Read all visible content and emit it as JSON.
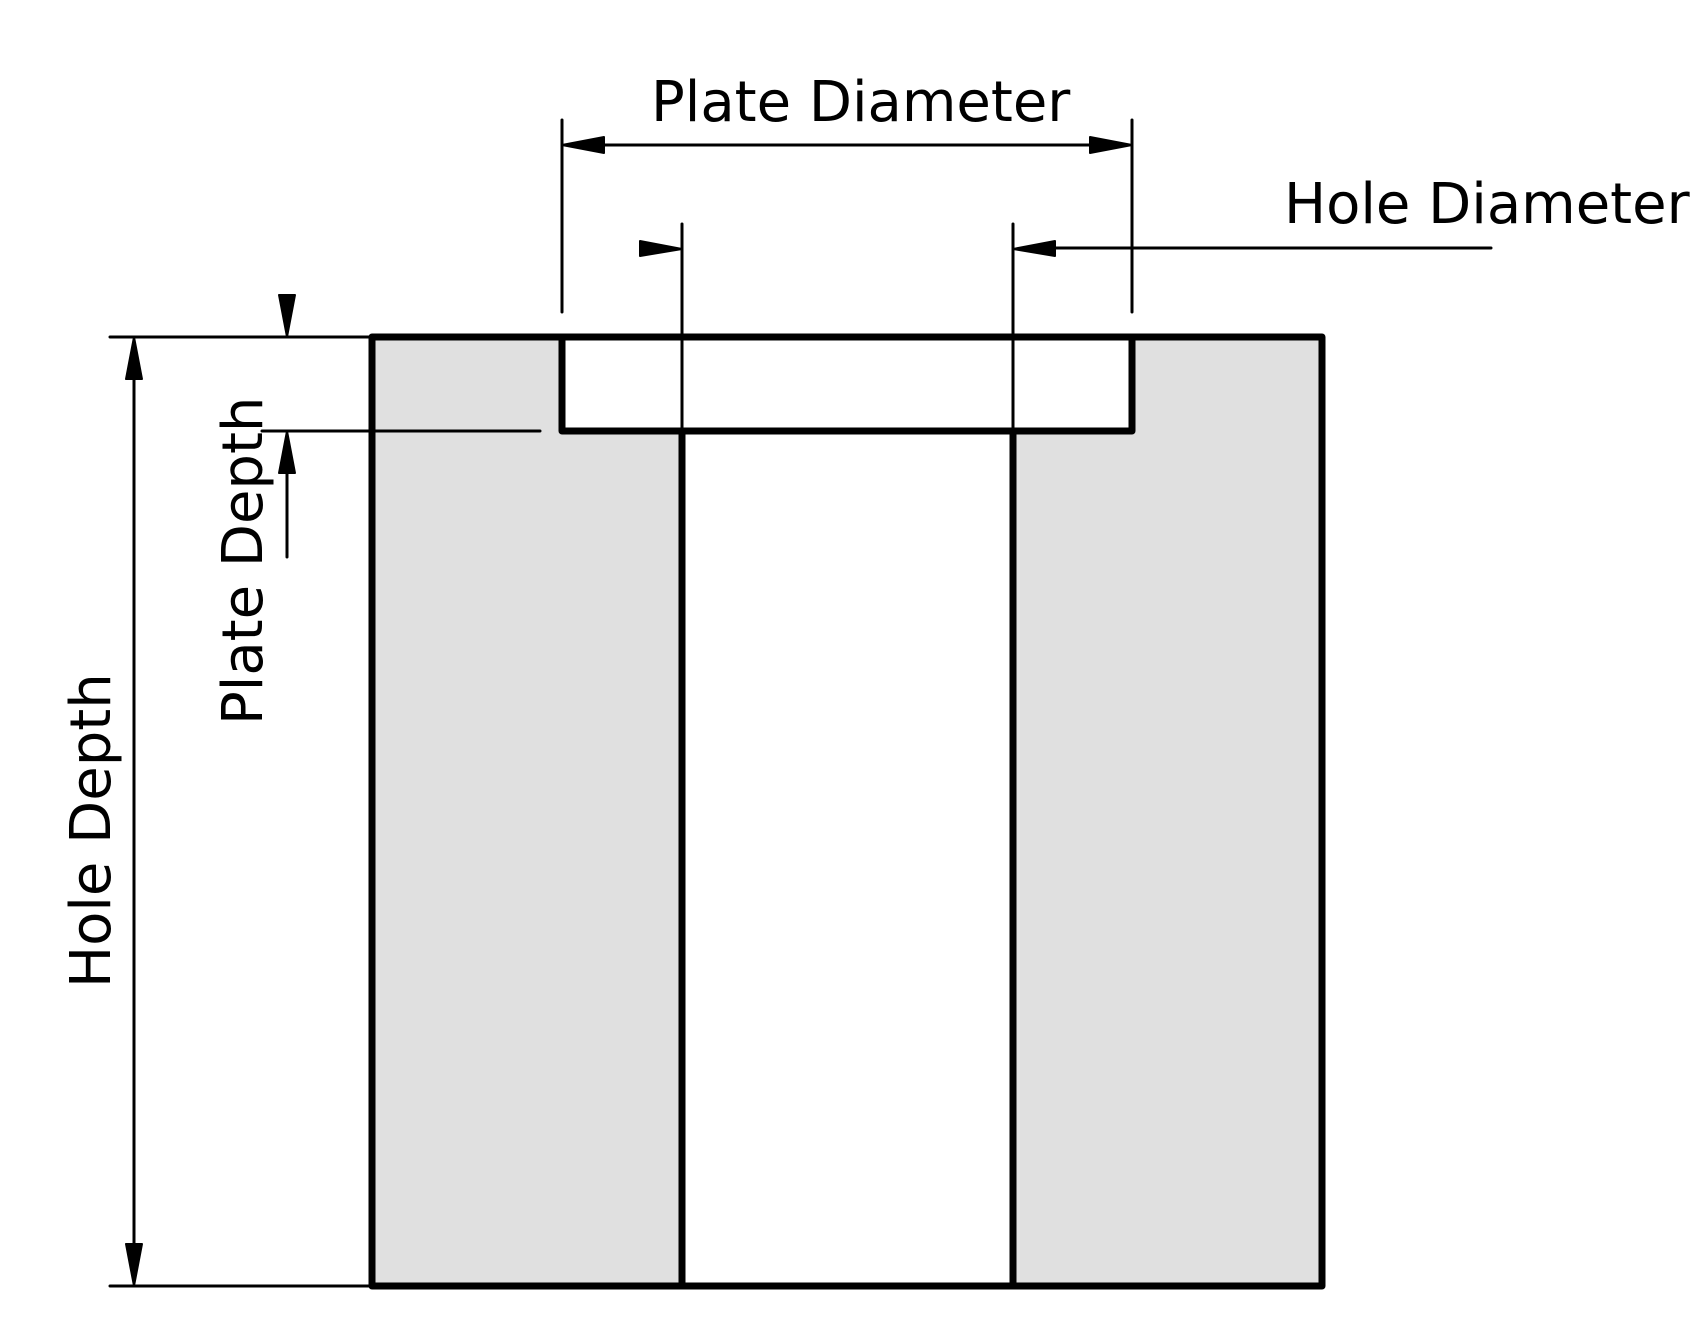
{
  "diagram": {
    "labels": {
      "plate_diameter": "Plate Diameter",
      "hole_diameter": "Hole Diameter",
      "plate_depth": "Plate Depth",
      "hole_depth": "Hole Depth"
    },
    "colors": {
      "line": "#000000",
      "material_fill": "#e0e0e0",
      "background": "#ffffff"
    }
  }
}
